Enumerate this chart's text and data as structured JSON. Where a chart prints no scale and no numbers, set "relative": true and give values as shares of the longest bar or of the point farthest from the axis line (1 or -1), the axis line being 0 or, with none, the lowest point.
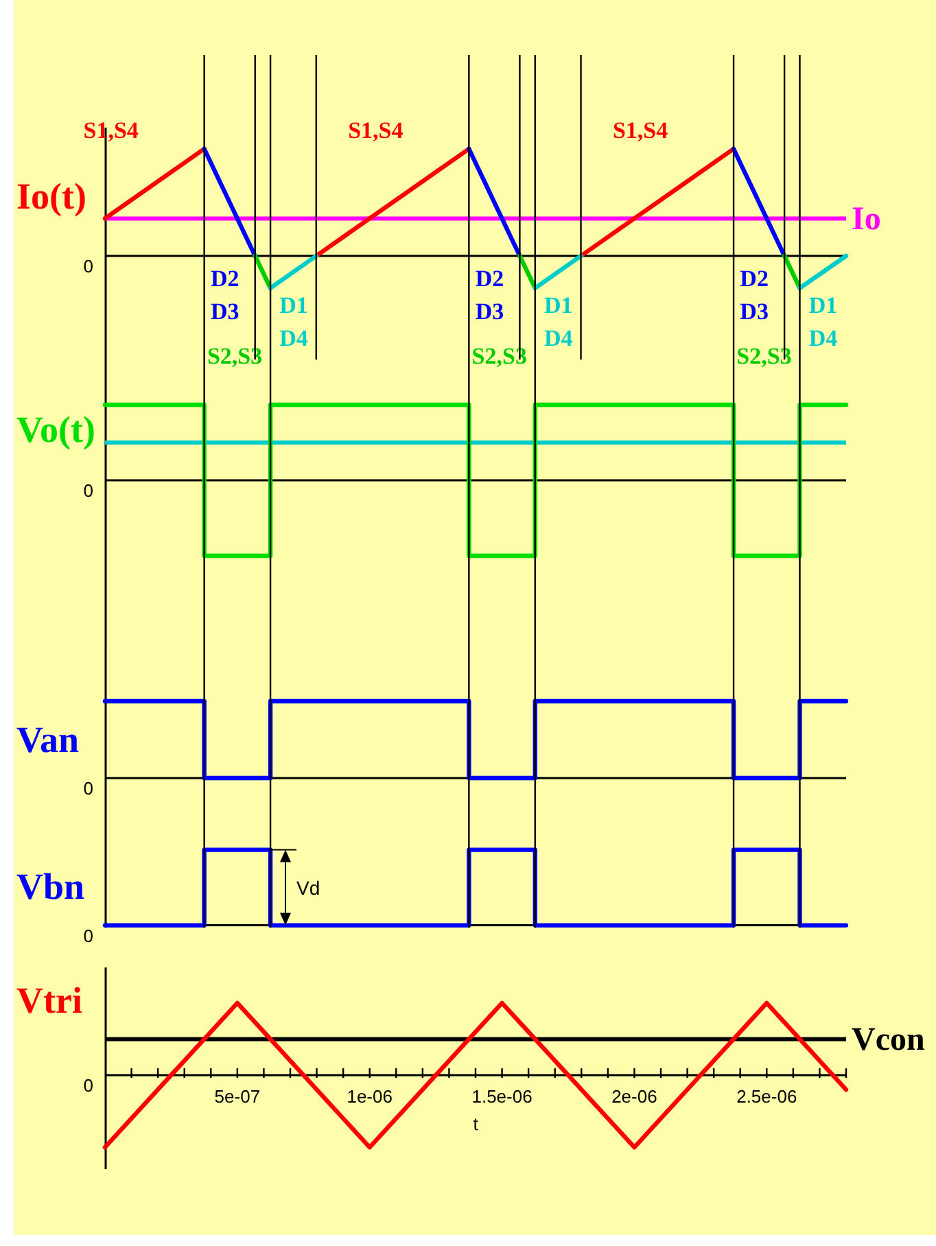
{
  "chart_data": [
    {
      "type": "line",
      "relative": true,
      "ylabel": "Io(t)",
      "xlim": [
        0,
        2.8e-06
      ],
      "tick_labels": false,
      "annotations": [
        "0"
      ],
      "ref_lines": [
        {
          "axis": "y",
          "value": 0.35,
          "label": "Io",
          "color": "#ff00ff"
        },
        {
          "axis": "x",
          "value": 3.75e-07,
          "color": "#000000"
        },
        {
          "axis": "x",
          "value": 6.25e-07,
          "color": "#000000"
        },
        {
          "axis": "x",
          "value": 1.375e-06,
          "color": "#000000"
        },
        {
          "axis": "x",
          "value": 1.625e-06,
          "color": "#000000"
        },
        {
          "axis": "x",
          "value": 2.375e-06,
          "color": "#000000"
        },
        {
          "axis": "x",
          "value": 2.625e-06,
          "color": "#000000"
        },
        {
          "axis": "x",
          "value": 5.67e-07,
          "color": "#000000"
        },
        {
          "axis": "x",
          "value": 7.98e-07,
          "color": "#000000"
        },
        {
          "axis": "x",
          "value": 1.567e-06,
          "color": "#000000"
        },
        {
          "axis": "x",
          "value": 1.798e-06,
          "color": "#000000"
        },
        {
          "axis": "x",
          "value": 2.567e-06,
          "color": "#000000"
        }
      ],
      "series": [
        {
          "name": "S1,S4",
          "color": "#ff0000",
          "x": [
            0,
            3.75e-07,
            null,
            7.98e-07,
            1.375e-06,
            null,
            1.798e-06,
            2.375e-06
          ],
          "values": [
            0.35,
            1,
            null,
            0,
            1,
            null,
            0,
            1
          ]
        },
        {
          "name": "D2 D3",
          "color": "#0000ff",
          "x": [
            3.75e-07,
            5.67e-07,
            null,
            1.375e-06,
            1.567e-06,
            null,
            2.375e-06,
            2.567e-06
          ],
          "values": [
            1,
            0,
            null,
            1,
            0,
            null,
            1,
            0
          ]
        },
        {
          "name": "S2,S3",
          "color": "#00cc00",
          "x": [
            5.67e-07,
            6.25e-07,
            null,
            1.567e-06,
            1.625e-06,
            null,
            2.567e-06,
            2.625e-06
          ],
          "values": [
            0,
            -0.3,
            null,
            0,
            -0.3,
            null,
            0,
            -0.3
          ]
        },
        {
          "name": "D1 D4",
          "color": "#00cccc",
          "x": [
            6.25e-07,
            7.98e-07,
            null,
            1.625e-06,
            1.798e-06,
            null,
            2.625e-06,
            2.8e-06
          ],
          "values": [
            -0.3,
            0,
            null,
            -0.3,
            0,
            null,
            -0.3,
            0
          ]
        }
      ]
    },
    {
      "type": "step",
      "relative": true,
      "ylabel": "Vo(t)",
      "xlim": [
        0,
        2.8e-06
      ],
      "tick_labels": false,
      "annotations": [
        "0"
      ],
      "ref_lines": [
        {
          "axis": "y",
          "value": 0.5,
          "color": "#00cccc"
        },
        {
          "axis": "x",
          "value": 3.75e-07,
          "color": "#000000"
        },
        {
          "axis": "x",
          "value": 6.25e-07,
          "color": "#000000"
        },
        {
          "axis": "x",
          "value": 1.375e-06,
          "color": "#000000"
        },
        {
          "axis": "x",
          "value": 1.625e-06,
          "color": "#000000"
        },
        {
          "axis": "x",
          "value": 2.375e-06,
          "color": "#000000"
        },
        {
          "axis": "x",
          "value": 2.625e-06,
          "color": "#000000"
        }
      ],
      "series": [
        {
          "color": "#00dd00",
          "x": [
            0,
            3.75e-07,
            6.25e-07,
            1.375e-06,
            1.625e-06,
            2.375e-06,
            2.625e-06,
            2.8e-06
          ],
          "values": [
            1,
            -1,
            1,
            -1,
            1,
            -1,
            1,
            1
          ]
        }
      ]
    },
    {
      "type": "step",
      "relative": true,
      "ylabel": "Van",
      "xlim": [
        0,
        2.8e-06
      ],
      "tick_labels": false,
      "annotations": [
        "0"
      ],
      "ref_lines": [
        {
          "axis": "x",
          "value": 3.75e-07,
          "color": "#000000"
        },
        {
          "axis": "x",
          "value": 6.25e-07,
          "color": "#000000"
        },
        {
          "axis": "x",
          "value": 1.375e-06,
          "color": "#000000"
        },
        {
          "axis": "x",
          "value": 1.625e-06,
          "color": "#000000"
        },
        {
          "axis": "x",
          "value": 2.375e-06,
          "color": "#000000"
        },
        {
          "axis": "x",
          "value": 2.625e-06,
          "color": "#000000"
        }
      ],
      "series": [
        {
          "color": "#0000ff",
          "x": [
            0,
            3.75e-07,
            6.25e-07,
            1.375e-06,
            1.625e-06,
            2.375e-06,
            2.625e-06,
            2.8e-06
          ],
          "values": [
            1,
            0,
            1,
            0,
            1,
            0,
            1,
            1
          ]
        }
      ]
    },
    {
      "type": "step",
      "relative": true,
      "ylabel": "Vbn",
      "xlim": [
        0,
        2.8e-06
      ],
      "tick_labels": false,
      "annotations": [
        "0",
        "Vd"
      ],
      "ref_lines": [
        {
          "axis": "x",
          "value": 3.75e-07,
          "color": "#000000"
        },
        {
          "axis": "x",
          "value": 6.25e-07,
          "color": "#000000"
        },
        {
          "axis": "x",
          "value": 1.375e-06,
          "color": "#000000"
        },
        {
          "axis": "x",
          "value": 1.625e-06,
          "color": "#000000"
        },
        {
          "axis": "x",
          "value": 2.375e-06,
          "color": "#000000"
        },
        {
          "axis": "x",
          "value": 2.625e-06,
          "color": "#000000"
        }
      ],
      "series": [
        {
          "color": "#0000ff",
          "x": [
            0,
            3.75e-07,
            6.25e-07,
            1.375e-06,
            1.625e-06,
            2.375e-06,
            2.625e-06,
            2.8e-06
          ],
          "values": [
            0,
            1,
            0,
            1,
            0,
            1,
            0,
            0
          ]
        }
      ]
    },
    {
      "type": "line",
      "relative": true,
      "ylabel": "Vtri",
      "xlabel": "t",
      "xlim": [
        0,
        2.8e-06
      ],
      "tick_labels": "x",
      "xticks": [
        {
          "value": 1e-07,
          "label": null
        },
        {
          "value": 2e-07,
          "label": null
        },
        {
          "value": 3e-07,
          "label": null
        },
        {
          "value": 4e-07,
          "label": null
        },
        {
          "value": 5e-07,
          "label": "5e-07"
        },
        {
          "value": 6e-07,
          "label": null
        },
        {
          "value": 7e-07,
          "label": null
        },
        {
          "value": 8e-07,
          "label": null
        },
        {
          "value": 9e-07,
          "label": null
        },
        {
          "value": 1e-06,
          "label": "1e-06"
        },
        {
          "value": 1.1e-06,
          "label": null
        },
        {
          "value": 1.2e-06,
          "label": null
        },
        {
          "value": 1.3e-06,
          "label": null
        },
        {
          "value": 1.4e-06,
          "label": null
        },
        {
          "value": 1.5e-06,
          "label": "1.5e-06"
        },
        {
          "value": 1.6e-06,
          "label": null
        },
        {
          "value": 1.7e-06,
          "label": null
        },
        {
          "value": 1.8e-06,
          "label": null
        },
        {
          "value": 1.9e-06,
          "label": null
        },
        {
          "value": 2e-06,
          "label": "2e-06"
        },
        {
          "value": 2.1e-06,
          "label": null
        },
        {
          "value": 2.2e-06,
          "label": null
        },
        {
          "value": 2.3e-06,
          "label": null
        },
        {
          "value": 2.4e-06,
          "label": null
        },
        {
          "value": 2.5e-06,
          "label": "2.5e-06"
        },
        {
          "value": 2.6e-06,
          "label": null
        },
        {
          "value": 2.7e-06,
          "label": null
        },
        {
          "value": 2.8e-06,
          "label": null
        }
      ],
      "annotations": [
        "0"
      ],
      "ref_lines": [
        {
          "axis": "y",
          "value": 0.5,
          "label": "Vcon",
          "color": "#000000"
        }
      ],
      "series": [
        {
          "color": "#ff0000",
          "x": [
            0,
            5e-07,
            1e-06,
            1.5e-06,
            2e-06,
            2.5e-06,
            2.8e-06
          ],
          "values": [
            -1,
            1,
            -1,
            1,
            -1,
            1,
            -0.2
          ]
        }
      ]
    }
  ]
}
